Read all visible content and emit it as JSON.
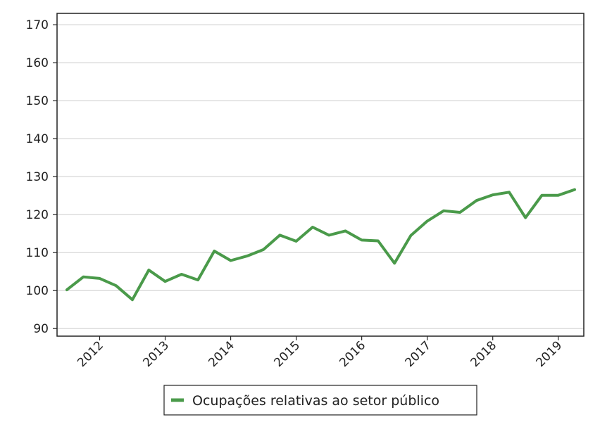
{
  "chart_data": {
    "type": "line",
    "title": "",
    "xlabel": "",
    "ylabel": "",
    "ylim": [
      88,
      173
    ],
    "yticks": [
      90,
      100,
      110,
      120,
      130,
      140,
      150,
      160,
      170
    ],
    "xticks": [
      "2012",
      "2013",
      "2014",
      "2015",
      "2016",
      "2017",
      "2018",
      "2019"
    ],
    "grid": "horizontal",
    "legend_position": "bottom",
    "colors": {
      "series": "#4a9a4a",
      "grid": "#dddddd",
      "axis": "#222222"
    },
    "x": [
      "2011-Q3",
      "2011-Q4",
      "2012-Q1",
      "2012-Q2",
      "2012-Q3",
      "2012-Q4",
      "2013-Q1",
      "2013-Q2",
      "2013-Q3",
      "2013-Q4",
      "2014-Q1",
      "2014-Q2",
      "2014-Q3",
      "2014-Q4",
      "2015-Q1",
      "2015-Q2",
      "2015-Q3",
      "2015-Q4",
      "2016-Q1",
      "2016-Q2",
      "2016-Q3",
      "2016-Q4",
      "2017-Q1",
      "2017-Q2",
      "2017-Q3",
      "2017-Q4",
      "2018-Q1",
      "2018-Q2",
      "2018-Q3",
      "2018-Q4",
      "2019-Q1",
      "2019-Q2"
    ],
    "series": [
      {
        "name": "Ocupações relativas ao setor público",
        "values": [
          100.2,
          103.6,
          103.2,
          101.3,
          97.6,
          105.4,
          102.4,
          104.3,
          102.8,
          110.4,
          107.9,
          109.1,
          110.8,
          114.6,
          113.0,
          116.7,
          114.6,
          115.7,
          113.3,
          113.1,
          107.2,
          114.5,
          118.3,
          121.0,
          120.6,
          123.7,
          125.2,
          125.9,
          119.2,
          125.1,
          125.1,
          126.6
        ]
      }
    ]
  }
}
